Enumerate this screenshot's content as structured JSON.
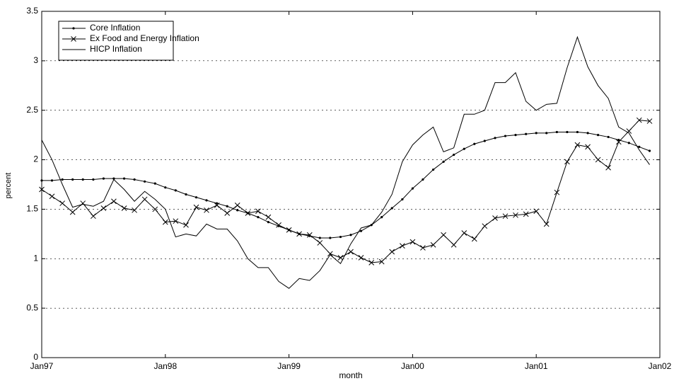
{
  "chart_data": {
    "type": "line",
    "x_label": "month",
    "y_label": "percent",
    "x": [
      1997,
      1997.083,
      1997.167,
      1997.25,
      1997.333,
      1997.417,
      1997.5,
      1997.583,
      1997.667,
      1997.75,
      1997.833,
      1997.917,
      1998,
      1998.083,
      1998.167,
      1998.25,
      1998.333,
      1998.417,
      1998.5,
      1998.583,
      1998.667,
      1998.75,
      1998.833,
      1998.917,
      1999,
      1999.083,
      1999.167,
      1999.25,
      1999.333,
      1999.417,
      1999.5,
      1999.583,
      1999.667,
      1999.75,
      1999.833,
      1999.917,
      2000,
      2000.083,
      2000.167,
      2000.25,
      2000.333,
      2000.417,
      2000.5,
      2000.583,
      2000.667,
      2000.75,
      2000.833,
      2000.917,
      2001,
      2001.083,
      2001.167,
      2001.25,
      2001.333,
      2001.417,
      2001.5,
      2001.583,
      2001.667,
      2001.75,
      2001.833,
      2001.917
    ],
    "series": [
      {
        "name": "Core Inflation",
        "color": "#000000",
        "marker": "dot",
        "values": [
          1.79,
          1.79,
          1.8,
          1.8,
          1.8,
          1.8,
          1.81,
          1.81,
          1.81,
          1.8,
          1.78,
          1.76,
          1.72,
          1.69,
          1.65,
          1.62,
          1.59,
          1.56,
          1.53,
          1.49,
          1.46,
          1.42,
          1.37,
          1.33,
          1.29,
          1.25,
          1.23,
          1.21,
          1.21,
          1.22,
          1.24,
          1.28,
          1.34,
          1.42,
          1.51,
          1.6,
          1.71,
          1.8,
          1.9,
          1.98,
          2.05,
          2.11,
          2.16,
          2.19,
          2.22,
          2.24,
          2.25,
          2.26,
          2.27,
          2.27,
          2.28,
          2.28,
          2.28,
          2.27,
          2.25,
          2.23,
          2.2,
          2.17,
          2.13,
          2.09
        ]
      },
      {
        "name": "Ex Food and Energy Inflation",
        "color": "#000000",
        "marker": "x",
        "values": [
          1.7,
          1.63,
          1.56,
          1.47,
          1.56,
          1.43,
          1.51,
          1.58,
          1.51,
          1.49,
          1.6,
          1.5,
          1.37,
          1.38,
          1.34,
          1.52,
          1.49,
          1.54,
          1.46,
          1.54,
          1.46,
          1.48,
          1.42,
          1.34,
          1.29,
          1.25,
          1.24,
          1.16,
          1.05,
          1.01,
          1.07,
          1.01,
          0.96,
          0.97,
          1.07,
          1.13,
          1.17,
          1.11,
          1.14,
          1.24,
          1.14,
          1.26,
          1.2,
          1.33,
          1.41,
          1.43,
          1.44,
          1.45,
          1.48,
          1.35,
          1.67,
          1.98,
          2.15,
          2.13,
          2.0,
          1.92,
          2.18,
          2.29,
          2.4,
          2.39
        ]
      },
      {
        "name": "HICP Inflation",
        "color": "#000000",
        "values": [
          2.2,
          2.0,
          1.75,
          1.52,
          1.55,
          1.53,
          1.58,
          1.8,
          1.7,
          1.58,
          1.68,
          1.6,
          1.5,
          1.22,
          1.25,
          1.23,
          1.35,
          1.3,
          1.3,
          1.18,
          1.0,
          0.91,
          0.91,
          0.77,
          0.7,
          0.8,
          0.78,
          0.88,
          1.04,
          0.95,
          1.15,
          1.31,
          1.34,
          1.47,
          1.65,
          1.98,
          2.15,
          2.25,
          2.33,
          2.08,
          2.12,
          2.46,
          2.46,
          2.5,
          2.78,
          2.78,
          2.88,
          2.59,
          2.5,
          2.56,
          2.57,
          2.93,
          3.24,
          2.94,
          2.75,
          2.62,
          2.33,
          2.27,
          2.1,
          1.95
        ]
      }
    ],
    "xlim": [
      1997,
      2002
    ],
    "xticks": [
      {
        "value": 1997,
        "label": "Jan97"
      },
      {
        "value": 1998,
        "label": "Jan98"
      },
      {
        "value": 1999,
        "label": "Jan99"
      },
      {
        "value": 2000,
        "label": "Jan00"
      },
      {
        "value": 2001,
        "label": "Jan01"
      },
      {
        "value": 2002,
        "label": "Jan02"
      }
    ],
    "ylim": [
      0,
      3.5
    ],
    "yticks": [
      0,
      0.5,
      1,
      1.5,
      2,
      2.5,
      3,
      3.5
    ],
    "grid": true,
    "legend": "top-left"
  }
}
